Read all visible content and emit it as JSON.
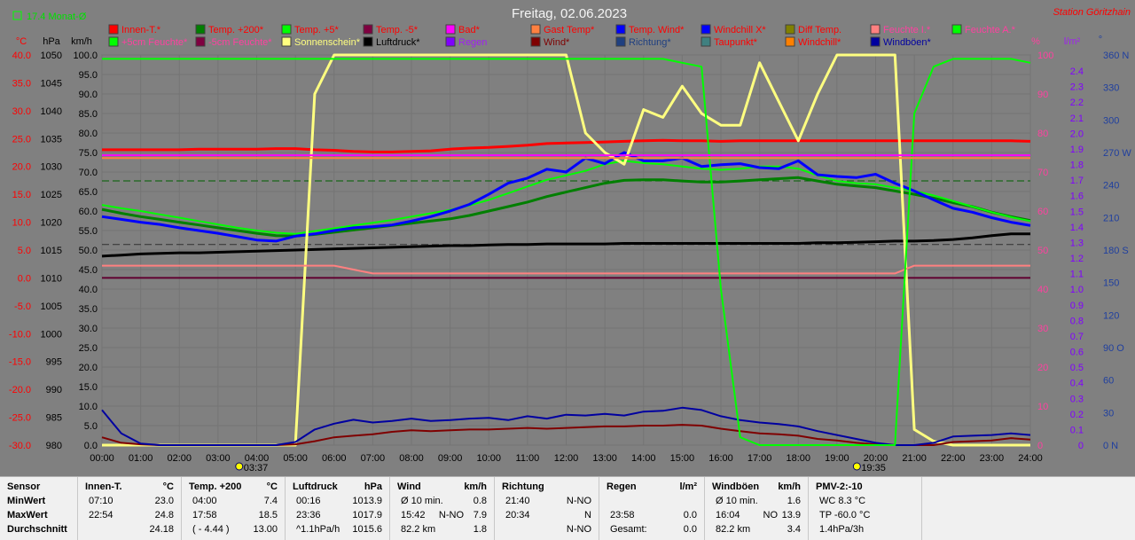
{
  "title": "Freitag, 02.06.2023",
  "station": "Station Göritzhain",
  "top_left_note": "17.4 Monat-Ø",
  "colors": {
    "bg": "#808080",
    "grid": "#6e6e6e",
    "red": "#ff0000",
    "blue": "#0000ff",
    "white": "#ffffff",
    "black": "#000000",
    "violet": "#a020f0",
    "purple": "#7a00c8",
    "pink": "#ff40a0",
    "navy": "#1f3f9f"
  },
  "axes": {
    "temp_label": "°C",
    "hpa_label": "hPa",
    "kmh_label": "km/h",
    "pct_label": "%",
    "rain_label": "l/m²",
    "deg_label": "°",
    "temp_ticks": [
      "40.0",
      "35.0",
      "30.0",
      "25.0",
      "20.0",
      "15.0",
      "10.0",
      "5.0",
      "0.0",
      "-5.0",
      "-10.0",
      "-15.0",
      "-20.0",
      "-25.0",
      "-30.0"
    ],
    "hpa_ticks": [
      "1050",
      "1045",
      "1040",
      "1035",
      "1030",
      "1025",
      "1020",
      "1015",
      "1010",
      "1005",
      "1000",
      "995",
      "990",
      "985",
      "980"
    ],
    "kmh_ticks": [
      "100.0",
      "95.0",
      "90.0",
      "85.0",
      "80.0",
      "75.0",
      "70.0",
      "65.0",
      "60.0",
      "55.0",
      "50.0",
      "45.0",
      "40.0",
      "35.0",
      "30.0",
      "25.0",
      "20.0",
      "15.0",
      "10.0",
      "5.0",
      "0.0"
    ],
    "pct_ticks": [
      "100",
      "90",
      "80",
      "70",
      "60",
      "50",
      "40",
      "30",
      "20",
      "10",
      "0"
    ],
    "rain_ticks": [
      "2.4",
      "2.3",
      "2.2",
      "2.1",
      "2.0",
      "1.9",
      "1.8",
      "1.7",
      "1.6",
      "1.5",
      "1.4",
      "1.3",
      "1.2",
      "1.1",
      "1.0",
      "0.9",
      "0.8",
      "0.7",
      "0.6",
      "0.5",
      "0.4",
      "0.3",
      "0.2",
      "0.1",
      "0"
    ],
    "dir_ticks": [
      "360 N",
      "330",
      "300",
      "270 W",
      "240",
      "210",
      "180 S",
      "150",
      "120",
      "90 O",
      "60",
      "30",
      "0 N"
    ],
    "x_ticks": [
      "00:00",
      "01:00",
      "02:00",
      "03:00",
      "04:00",
      "05:00",
      "06:00",
      "07:00",
      "08:00",
      "09:00",
      "10:00",
      "11:00",
      "12:00",
      "13:00",
      "14:00",
      "15:00",
      "16:00",
      "17:00",
      "18:00",
      "19:00",
      "20:00",
      "21:00",
      "22:00",
      "23:00",
      "24:00"
    ],
    "sunrise": "03:37",
    "sunset": "19:35"
  },
  "legend": [
    {
      "label": "Innen-T.*",
      "color": "#ff0000",
      "text_color": "#ff0000"
    },
    {
      "label": "Temp. +200*",
      "color": "#007f00",
      "text_color": "#ff0000"
    },
    {
      "label": "Temp. +5*",
      "color": "#00ff00",
      "text_color": "#ff0000"
    },
    {
      "label": "Temp. -5*",
      "color": "#7f0040",
      "text_color": "#ff0000"
    },
    {
      "label": "Bad*",
      "color": "#ff00ff",
      "text_color": "#ff0000"
    },
    {
      "label": "Gast Temp*",
      "color": "#ff8040",
      "text_color": "#ff0000"
    },
    {
      "label": "Temp. Wind*",
      "color": "#0000ff",
      "text_color": "#ff0000"
    },
    {
      "label": "Windchill X*",
      "color": "#0000ff",
      "text_color": "#ff0000"
    },
    {
      "label": "Diff Temp.",
      "color": "#808000",
      "text_color": "#ff0000"
    },
    {
      "label": "Feuchte I.*",
      "color": "#ff8080",
      "text_color": "#ff40a0"
    },
    {
      "label": "Feuchte A.*",
      "color": "#00ff00",
      "text_color": "#ff40a0"
    },
    {
      "label": "+5cm Feuchte*",
      "color": "#00ff00",
      "text_color": "#ff40a0"
    },
    {
      "label": "-5cm Feuchte*",
      "color": "#7f0040",
      "text_color": "#ff40a0"
    },
    {
      "label": "Sonnenschein*",
      "color": "#ffff80",
      "text_color": "#ffff80"
    },
    {
      "label": "Luftdruck*",
      "color": "#000000",
      "text_color": "#000000"
    },
    {
      "label": "Regen",
      "color": "#8000ff",
      "text_color": "#a020f0"
    },
    {
      "label": "Wind*",
      "color": "#7f0000",
      "text_color": "#7f0000"
    },
    {
      "label": "Richtung*",
      "color": "#204080",
      "text_color": "#204080"
    },
    {
      "label": "Taupunkt*",
      "color": "#408080",
      "text_color": "#ff0000"
    },
    {
      "label": "Windchill*",
      "color": "#ff8000",
      "text_color": "#ff0000"
    },
    {
      "label": "Windböen*",
      "color": "#0000a0",
      "text_color": "#0000a0"
    }
  ],
  "chart_data": {
    "type": "line",
    "title": "Freitag, 02.06.2023",
    "x": [
      0,
      0.5,
      1,
      1.5,
      2,
      2.5,
      3,
      3.5,
      4,
      4.5,
      5,
      5.5,
      6,
      6.5,
      7,
      7.5,
      8,
      8.5,
      9,
      9.5,
      10,
      10.5,
      11,
      11.5,
      12,
      12.5,
      13,
      13.5,
      14,
      14.5,
      15,
      15.5,
      16,
      16.5,
      17,
      17.5,
      18,
      18.5,
      19,
      19.5,
      20,
      20.5,
      21,
      21.5,
      22,
      22.5,
      23,
      23.5,
      24
    ],
    "x_unit": "h",
    "series": [
      {
        "name": "Innen-T.*",
        "axis": "temp",
        "color": "#ff0000",
        "values": [
          23.0,
          23.0,
          23.0,
          23.0,
          23.0,
          23.1,
          23.1,
          23.1,
          23.1,
          23.2,
          23.2,
          23.0,
          22.9,
          22.7,
          22.6,
          22.6,
          22.7,
          22.8,
          23.1,
          23.3,
          23.4,
          23.6,
          23.8,
          24.1,
          24.2,
          24.3,
          24.4,
          24.5,
          24.6,
          24.7,
          24.6,
          24.6,
          24.5,
          24.6,
          24.6,
          24.6,
          24.6,
          24.6,
          24.6,
          24.6,
          24.6,
          24.6,
          24.6,
          24.6,
          24.6,
          24.6,
          24.6,
          24.6,
          24.5
        ]
      },
      {
        "name": "Temp. +200*",
        "axis": "temp",
        "color": "#007f00",
        "values": [
          12.3,
          11.6,
          11.0,
          10.5,
          10.0,
          9.5,
          9.0,
          8.5,
          8.0,
          7.6,
          7.5,
          7.8,
          8.2,
          8.6,
          9.0,
          9.4,
          9.8,
          10.2,
          10.6,
          11.2,
          12.0,
          12.8,
          13.6,
          14.6,
          15.4,
          16.2,
          17.0,
          17.5,
          17.6,
          17.6,
          17.4,
          17.2,
          17.2,
          17.4,
          17.6,
          17.8,
          18.0,
          17.4,
          16.8,
          16.5,
          16.2,
          15.6,
          15.0,
          14.3,
          13.5,
          12.8,
          11.8,
          11.0,
          10.3
        ]
      },
      {
        "name": "Temp. +5*",
        "axis": "temp",
        "color": "#00ff00",
        "values": [
          13.1,
          12.5,
          12.0,
          11.4,
          10.8,
          10.2,
          9.6,
          9.0,
          8.5,
          8.1,
          7.9,
          8.4,
          8.9,
          9.4,
          9.9,
          10.4,
          11.0,
          11.6,
          12.2,
          13.0,
          14.0,
          15.2,
          16.4,
          17.6,
          18.4,
          19.2,
          20.4,
          21.0,
          20.6,
          20.4,
          20.0,
          19.6,
          19.4,
          19.6,
          20.0,
          20.0,
          19.6,
          18.4,
          17.4,
          17.0,
          16.8,
          16.2,
          15.6,
          14.8,
          13.8,
          12.8,
          11.8,
          10.9,
          10.2
        ]
      },
      {
        "name": "Temp. Wind*",
        "axis": "temp",
        "color": "#0000ff",
        "values": [
          11.0,
          10.5,
          10.0,
          9.6,
          9.0,
          8.5,
          8.0,
          7.4,
          6.8,
          6.6,
          7.5,
          7.9,
          8.5,
          9.0,
          9.2,
          9.5,
          10.2,
          11.0,
          12.0,
          13.2,
          15.0,
          17.0,
          17.9,
          19.5,
          19.0,
          21.5,
          20.5,
          22.5,
          21.0,
          21.0,
          21.5,
          20.0,
          20.3,
          20.5,
          19.8,
          19.6,
          21.0,
          18.5,
          18.2,
          18.0,
          18.6,
          17.0,
          15.6,
          14.0,
          12.5,
          11.8,
          10.8,
          10.0,
          9.4
        ]
      },
      {
        "name": "Luftdruck*",
        "axis": "hpa",
        "color": "#000000",
        "values": [
          1013.9,
          1014.1,
          1014.3,
          1014.4,
          1014.5,
          1014.5,
          1014.6,
          1014.7,
          1014.8,
          1014.9,
          1015.0,
          1015.1,
          1015.2,
          1015.3,
          1015.4,
          1015.5,
          1015.6,
          1015.7,
          1015.8,
          1015.8,
          1015.9,
          1016.0,
          1016.0,
          1016.1,
          1016.1,
          1016.1,
          1016.1,
          1016.2,
          1016.2,
          1016.2,
          1016.2,
          1016.2,
          1016.2,
          1016.2,
          1016.2,
          1016.2,
          1016.2,
          1016.3,
          1016.3,
          1016.4,
          1016.5,
          1016.6,
          1016.6,
          1016.7,
          1016.9,
          1017.2,
          1017.6,
          1017.9,
          1017.9
        ]
      },
      {
        "name": "Sonnenschein*",
        "axis": "pct",
        "color": "#ffff80",
        "values": [
          0,
          0,
          0,
          0,
          0,
          0,
          0,
          0,
          0,
          0,
          0,
          90,
          100,
          100,
          100,
          100,
          100,
          100,
          100,
          100,
          100,
          100,
          100,
          100,
          100,
          80,
          75,
          72,
          86,
          84,
          92,
          85,
          82,
          82,
          98,
          88,
          78,
          90,
          100,
          100,
          100,
          100,
          4,
          1,
          0,
          0,
          0,
          0,
          0
        ]
      },
      {
        "name": "Wind*",
        "axis": "kmh",
        "color": "#7f0000",
        "values": [
          2.0,
          0.6,
          0.2,
          0.0,
          0.0,
          0.0,
          0.0,
          0.0,
          0.0,
          0.0,
          0.2,
          1.0,
          2.0,
          2.4,
          2.8,
          3.4,
          3.8,
          3.6,
          3.8,
          4.0,
          4.0,
          4.2,
          4.4,
          4.2,
          4.4,
          4.6,
          4.8,
          4.8,
          5.0,
          5.0,
          5.2,
          5.0,
          4.2,
          3.6,
          3.0,
          2.8,
          2.4,
          1.6,
          1.2,
          0.6,
          0.2,
          0.0,
          0.0,
          0.0,
          0.8,
          1.0,
          1.2,
          1.8,
          1.4
        ]
      },
      {
        "name": "Windböen*",
        "axis": "kmh",
        "color": "#0000a0",
        "values": [
          9.0,
          3.0,
          0.4,
          0.0,
          0.0,
          0.0,
          0.0,
          0.0,
          0.0,
          0.0,
          0.8,
          4.0,
          5.5,
          6.5,
          5.8,
          6.2,
          6.8,
          6.2,
          6.4,
          6.8,
          7.0,
          6.4,
          7.4,
          6.8,
          7.8,
          7.6,
          8.0,
          7.6,
          8.6,
          8.8,
          9.6,
          9.0,
          7.4,
          6.4,
          5.8,
          5.4,
          4.8,
          3.6,
          2.6,
          1.6,
          0.6,
          0.0,
          0.0,
          0.6,
          2.2,
          2.4,
          2.6,
          3.0,
          2.6
        ]
      },
      {
        "name": "Feuchte I.*",
        "axis": "pct",
        "color": "#ff8080",
        "values": [
          46,
          46,
          46,
          46,
          46,
          46,
          46,
          46,
          46,
          46,
          46,
          46,
          46,
          45,
          44,
          44,
          44,
          44,
          44,
          44,
          44,
          44,
          44,
          44,
          44,
          44,
          44,
          44,
          44,
          44,
          44,
          44,
          44,
          44,
          44,
          44,
          44,
          44,
          44,
          44,
          44,
          44,
          46,
          46,
          46,
          46,
          46,
          46,
          46
        ]
      },
      {
        "name": "Feuchte A.*",
        "axis": "pct",
        "color": "#00ff00",
        "values": [
          99,
          99,
          99,
          99,
          99,
          99,
          99,
          99,
          99,
          99,
          99,
          99,
          99,
          99,
          99,
          99,
          99,
          99,
          99,
          99,
          99,
          99,
          99,
          99,
          99,
          99,
          99,
          99,
          99,
          99,
          98,
          97,
          40,
          2,
          0,
          0,
          0,
          0,
          0,
          0,
          0,
          0,
          85,
          97,
          99,
          99,
          99,
          99,
          98
        ]
      },
      {
        "name": "Bad*",
        "axis": "temp",
        "color": "#ff00ff",
        "values": [
          22.0,
          22.0,
          22.0,
          22.0,
          22.0,
          22.0,
          22.0,
          22.0,
          22.0,
          22.0,
          22.0,
          22.0,
          22.0,
          22.0,
          22.0,
          22.0,
          22.0,
          22.0,
          22.0,
          22.0,
          22.0,
          22.0,
          22.0,
          22.0,
          22.0,
          22.0,
          22.0,
          22.0,
          22.0,
          22.0,
          22.0,
          22.0,
          22.0,
          22.0,
          22.0,
          22.0,
          22.0,
          22.0,
          22.0,
          22.0,
          22.0,
          22.0,
          22.0,
          22.0,
          22.0,
          22.0,
          22.0,
          22.0,
          22.0
        ]
      },
      {
        "name": "Gast Temp*",
        "axis": "temp",
        "color": "#ff8040",
        "values": [
          21.5,
          21.5,
          21.5,
          21.5,
          21.5,
          21.5,
          21.5,
          21.5,
          21.5,
          21.5,
          21.5,
          21.5,
          21.5,
          21.5,
          21.5,
          21.5,
          21.5,
          21.5,
          21.5,
          21.5,
          21.5,
          21.5,
          21.5,
          21.5,
          21.5,
          21.5,
          21.5,
          21.5,
          21.5,
          21.5,
          21.5,
          21.5,
          21.5,
          21.5,
          21.5,
          21.5,
          21.5,
          21.5,
          21.5,
          21.5,
          21.5,
          21.5,
          21.5,
          21.5,
          21.5,
          21.5,
          21.5,
          21.5,
          21.5
        ]
      }
    ],
    "ylim": {
      "temp": [
        -30,
        40
      ],
      "hpa": [
        980,
        1050
      ],
      "kmh": [
        0,
        100
      ],
      "pct": [
        0,
        100
      ]
    },
    "grid": true,
    "legend_position": "top"
  },
  "table": {
    "columns": [
      {
        "title": "Sensor",
        "unit": "",
        "rows": [
          [
            "MinWert",
            "",
            ""
          ],
          [
            "MaxWert",
            "",
            ""
          ],
          [
            "Durchschnitt",
            "",
            ""
          ]
        ]
      },
      {
        "title": "Innen-T.",
        "unit": "°C",
        "rows": [
          [
            "07:10",
            "",
            "23.0"
          ],
          [
            "22:54",
            "",
            "24.8"
          ],
          [
            "",
            "",
            "24.18"
          ]
        ]
      },
      {
        "title": "Temp. +200",
        "unit": "°C",
        "rows": [
          [
            "04:00",
            "",
            "7.4"
          ],
          [
            "17:58",
            "",
            "18.5"
          ],
          [
            "( - 4.44 )",
            "",
            "13.00"
          ]
        ]
      },
      {
        "title": "Luftdruck",
        "unit": "hPa",
        "rows": [
          [
            "00:16",
            "",
            "1013.9"
          ],
          [
            "23:36",
            "",
            "1017.9"
          ],
          [
            "^1.1hPa/h",
            "",
            "1015.6"
          ]
        ]
      },
      {
        "title": "Wind",
        "unit": "km/h",
        "rows": [
          [
            "Ø 10 min.",
            "",
            "0.8"
          ],
          [
            "15:42",
            "N-NO",
            "7.9"
          ],
          [
            "82.2 km",
            "",
            "1.8"
          ]
        ]
      },
      {
        "title": "Richtung",
        "unit": "",
        "rows": [
          [
            "21:40",
            "",
            "N-NO"
          ],
          [
            "20:34",
            "",
            "N"
          ],
          [
            "",
            "",
            "N-NO"
          ]
        ]
      },
      {
        "title": "Regen",
        "unit": "l/m²",
        "rows": [
          [
            "",
            "",
            ""
          ],
          [
            "23:58",
            "",
            "0.0"
          ],
          [
            "Gesamt:",
            "",
            "0.0"
          ]
        ]
      },
      {
        "title": "Windböen",
        "unit": "km/h",
        "rows": [
          [
            "Ø 10 min.",
            "",
            "1.6"
          ],
          [
            "16:04",
            "NO",
            "13.9"
          ],
          [
            "82.2 km",
            "",
            "3.4"
          ]
        ]
      },
      {
        "title": "PMV-2:-10",
        "unit": "",
        "rows": [
          [
            "WC 8.3 °C",
            "",
            ""
          ],
          [
            "TP -60.0 °C",
            "",
            ""
          ],
          [
            "1.4hPa/3h",
            "",
            ""
          ]
        ]
      }
    ]
  }
}
